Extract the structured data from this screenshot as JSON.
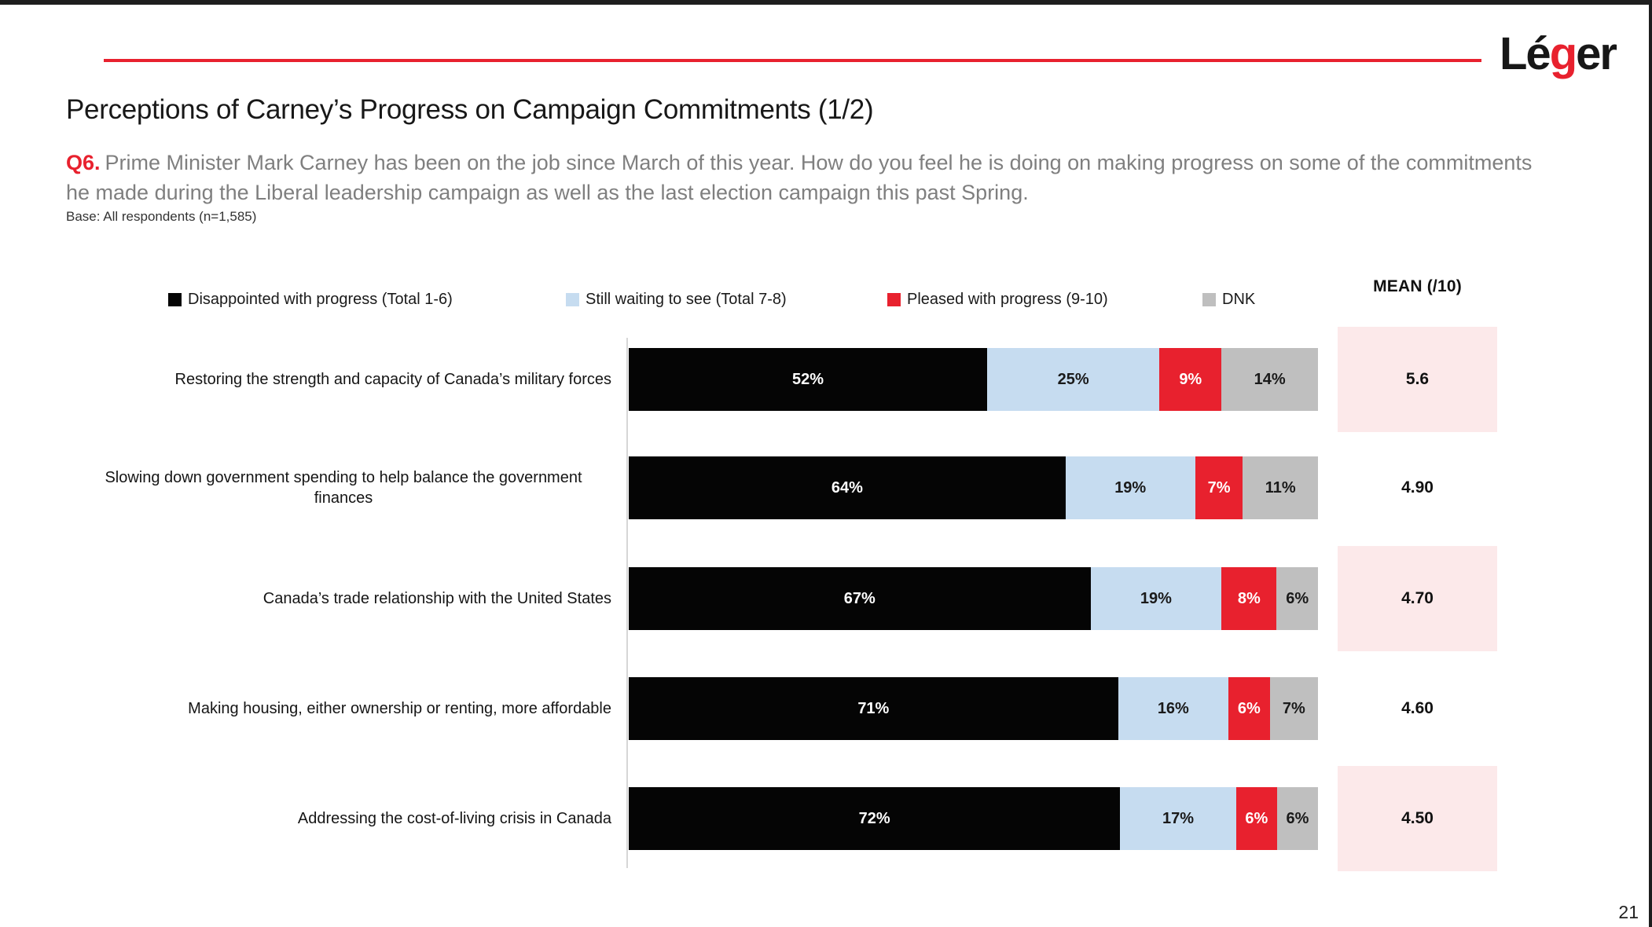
{
  "branding": {
    "logo_prefix": "Lé",
    "logo_accent": "g",
    "logo_suffix": "er",
    "brand_red": "#e8212e"
  },
  "header": {
    "title": "Perceptions of Carney’s Progress on Campaign Commitments (1/2)",
    "question_label": "Q6.",
    "question_text": "Prime Minister Mark Carney has been on the job since March of this year. How do you feel he is doing on making progress on some of the commitments he made during the Liberal leadership campaign as well as the last election campaign this past Spring.",
    "base_note": "Base: All respondents (n=1,585)"
  },
  "chart_data": {
    "type": "bar",
    "orientation": "horizontal",
    "stacked": true,
    "x_axis": {
      "min": 0,
      "max": 100,
      "unit": "%",
      "gridlines": false
    },
    "legend_position": "top",
    "mean_column_header": "MEAN (/10)",
    "highlight_color": "#fce9ea",
    "axis_line_color": "#d6d6d6",
    "legend": [
      {
        "label": "Disappointed with progress (Total 1-6)",
        "color": "#050505",
        "value_text_color": "#ffffff"
      },
      {
        "label": "Still waiting to see (Total 7-8)",
        "color": "#c6dcf0",
        "value_text_color": "#1a1a1a"
      },
      {
        "label": "Pleased with progress (9-10)",
        "color": "#e8212e",
        "value_text_color": "#ffffff"
      },
      {
        "label": "DNK",
        "color": "#bfbfbf",
        "value_text_color": "#1a1a1a"
      }
    ],
    "rows": [
      {
        "category": "Restoring the strength and capacity of Canada’s military forces",
        "values": [
          52,
          25,
          9,
          14
        ],
        "mean": "5.6",
        "highlighted": true
      },
      {
        "category": "Slowing down government spending to help balance the government finances",
        "values": [
          64,
          19,
          7,
          11
        ],
        "mean": "4.90",
        "highlighted": false,
        "label_align": "center"
      },
      {
        "category": "Canada’s trade relationship with the United States",
        "values": [
          67,
          19,
          8,
          6
        ],
        "mean": "4.70",
        "highlighted": true
      },
      {
        "category": "Making housing, either ownership or renting, more affordable",
        "values": [
          71,
          16,
          6,
          7
        ],
        "mean": "4.60",
        "highlighted": false
      },
      {
        "category": "Addressing the cost-of-living crisis in Canada",
        "values": [
          72,
          17,
          6,
          6
        ],
        "mean": "4.50",
        "highlighted": true
      }
    ]
  },
  "footer": {
    "page_number": "21"
  }
}
